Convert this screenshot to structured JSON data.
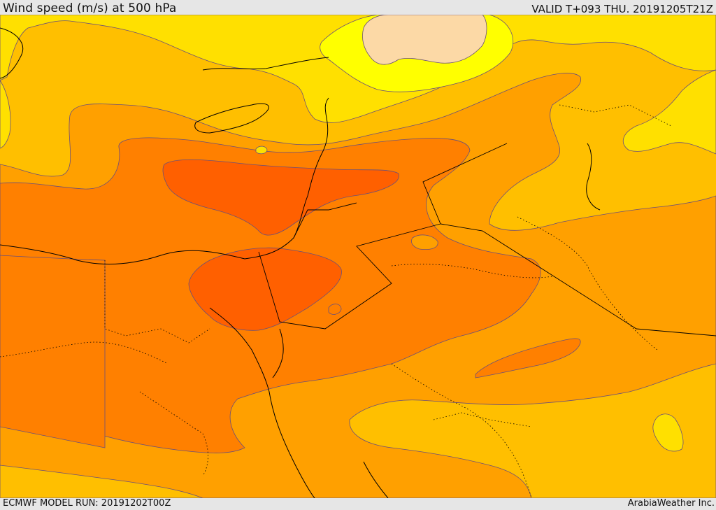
{
  "header": {
    "title": "Wind speed (m/s) at 500 hPa",
    "valid": "VALID T+093 THU. 20191205T21Z"
  },
  "footer": {
    "model_run": "ECMWF MODEL RUN: 20191202T00Z",
    "credit": "ArabiaWeather Inc."
  },
  "palette": {
    "band_1": "#fcd9a6",
    "band_2": "#ffff00",
    "band_3": "#ffe000",
    "band_4": "#ffbf00",
    "band_5": "#ffa000",
    "band_6": "#ff8000",
    "band_7": "#ff6000",
    "contour": "#6a4f7a",
    "coastline": "#000000",
    "border": "#000000"
  }
}
